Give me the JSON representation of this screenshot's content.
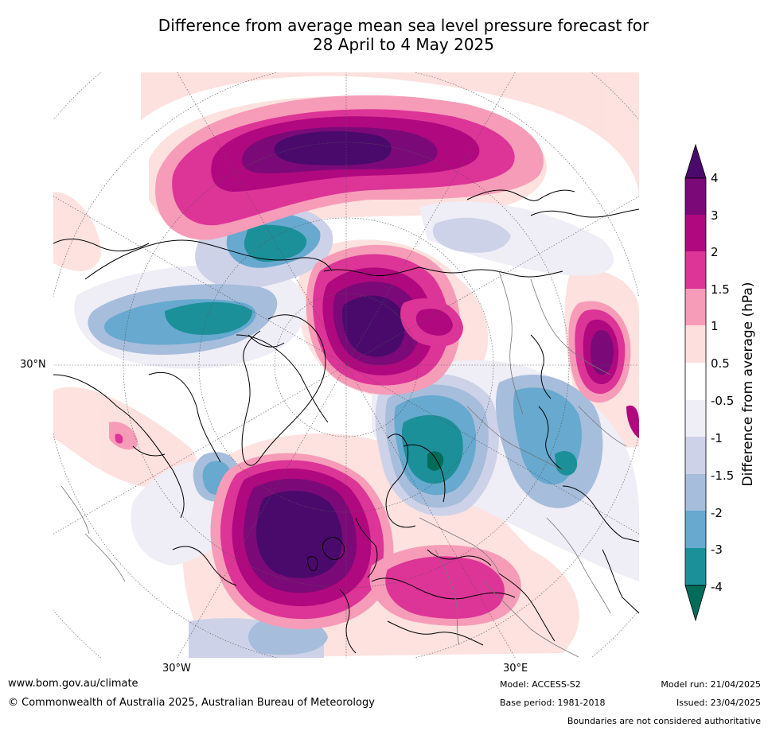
{
  "title": {
    "line1": "Difference from average mean sea level pressure forecast for",
    "line2": "28 April to 4 May 2025"
  },
  "map": {
    "lat_label": "30°N",
    "lon_labels": [
      "30°W",
      "30°E"
    ],
    "projection": "north-polar-stereographic"
  },
  "colorbar": {
    "label": "Difference from average (hPa)",
    "ticks": [
      "4",
      "3",
      "2",
      "1.5",
      "1",
      "0.5",
      "-0.5",
      "-1",
      "-1.5",
      "-2",
      "-3",
      "-4"
    ],
    "colors": {
      "gt4": "#4a0a6b",
      "3_to_4": "#7b0a78",
      "2_to_3": "#b0087f",
      "1.5_to_2": "#dd3497",
      "1_to_1.5": "#f69cb8",
      "0.5_to_1": "#fde0dd",
      "neutral": "#ffffff",
      "-1_to_-0.5": "#efedf5",
      "-1.5_to_-1": "#cdd2e8",
      "-2_to_-1.5": "#a6bddb",
      "-3_to_-2": "#67a9cf",
      "-4_to_-3": "#1c9099",
      "lt-4": "#016c59"
    }
  },
  "footer": {
    "url": "www.bom.gov.au/climate",
    "copyright": "© Commonwealth of Australia 2025, Australian Bureau of Meteorology",
    "model": "Model: ACCESS-S2",
    "base_period": "Base period: 1981-2018",
    "model_run": "Model run: 21/04/2025",
    "issued": "Issued: 23/04/2025",
    "disclaimer": "Boundaries are not considered authoritative"
  }
}
